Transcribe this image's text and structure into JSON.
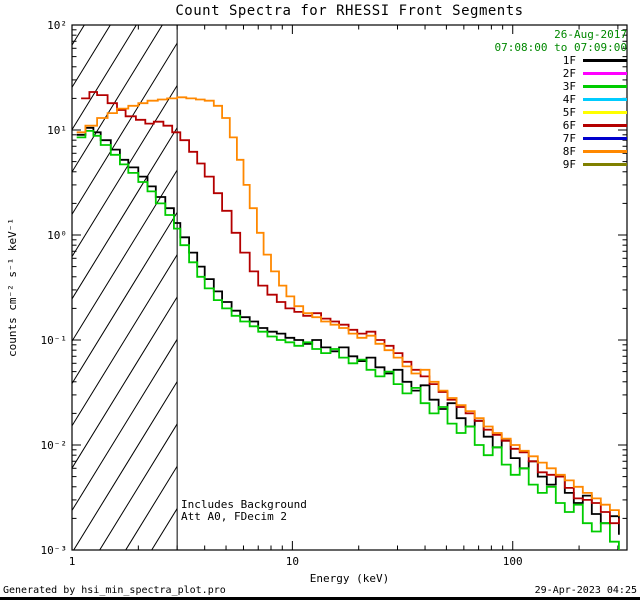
{
  "title": "Count Spectra for RHESSI Front Segments",
  "footer": {
    "left": "Generated by hsi_min_spectra_plot.pro",
    "right": "29-Apr-2023 04:25"
  },
  "annotations": {
    "background": "Includes Background",
    "attenuator": "Att A0, FDecim 2"
  },
  "legend": {
    "date": "26-Aug-2017",
    "time_range": "07:08:00 to 07:09:00",
    "date_color": "#008800",
    "entries": [
      {
        "label": "1F",
        "color": "#000000"
      },
      {
        "label": "2F",
        "color": "#ff00ff"
      },
      {
        "label": "3F",
        "color": "#00cc00"
      },
      {
        "label": "4F",
        "color": "#00ccff"
      },
      {
        "label": "5F",
        "color": "#ffff00"
      },
      {
        "label": "6F",
        "color": "#b40000"
      },
      {
        "label": "7F",
        "color": "#0000cc"
      },
      {
        "label": "8F",
        "color": "#ff8800"
      },
      {
        "label": "9F",
        "color": "#808000"
      }
    ]
  },
  "chart_data": {
    "type": "line",
    "mode": "histogram-step",
    "x_scale": "log",
    "y_scale": "log",
    "xlabel": "Energy (keV)",
    "ylabel": "counts cm⁻² s⁻¹ keV⁻¹",
    "xlim": [
      1,
      330
    ],
    "ylim": [
      0.001,
      100
    ],
    "x_ticks": [
      1,
      10,
      100
    ],
    "x_tick_labels": [
      "1",
      "10",
      "100"
    ],
    "y_ticks": [
      0.001,
      0.01,
      0.1,
      1,
      10,
      100
    ],
    "y_tick_labels": [
      "10⁻³",
      "10⁻²",
      "10⁻¹",
      "10⁰",
      "10¹",
      "10²"
    ],
    "grid": false,
    "legend_position": "top-right",
    "hatch_region": {
      "x_min": 1,
      "x_max": 3
    },
    "series": [
      {
        "name": "1F",
        "color": "#000000",
        "points": [
          [
            1.05,
            9.0
          ],
          [
            1.15,
            10.5
          ],
          [
            1.25,
            9.5
          ],
          [
            1.35,
            8.0
          ],
          [
            1.5,
            6.5
          ],
          [
            1.65,
            5.2
          ],
          [
            1.8,
            4.4
          ],
          [
            2.0,
            3.6
          ],
          [
            2.2,
            2.9
          ],
          [
            2.4,
            2.3
          ],
          [
            2.65,
            1.8
          ],
          [
            2.9,
            1.3
          ],
          [
            3.1,
            0.95
          ],
          [
            3.4,
            0.68
          ],
          [
            3.7,
            0.5
          ],
          [
            4.0,
            0.38
          ],
          [
            4.4,
            0.29
          ],
          [
            4.8,
            0.23
          ],
          [
            5.3,
            0.19
          ],
          [
            5.8,
            0.165
          ],
          [
            6.4,
            0.15
          ],
          [
            7.0,
            0.13
          ],
          [
            7.7,
            0.12
          ],
          [
            8.5,
            0.115
          ],
          [
            9.3,
            0.105
          ],
          [
            10.2,
            0.1
          ],
          [
            11.2,
            0.092
          ],
          [
            12.3,
            0.1
          ],
          [
            13.5,
            0.085
          ],
          [
            14.9,
            0.078
          ],
          [
            16.3,
            0.085
          ],
          [
            18.0,
            0.07
          ],
          [
            19.7,
            0.063
          ],
          [
            21.7,
            0.068
          ],
          [
            23.8,
            0.055
          ],
          [
            26.2,
            0.048
          ],
          [
            28.8,
            0.052
          ],
          [
            31.6,
            0.04
          ],
          [
            34.7,
            0.033
          ],
          [
            38.2,
            0.037
          ],
          [
            41.9,
            0.027
          ],
          [
            46.1,
            0.022
          ],
          [
            50.6,
            0.025
          ],
          [
            55.6,
            0.018
          ],
          [
            61.1,
            0.015
          ],
          [
            67.2,
            0.017
          ],
          [
            73.8,
            0.012
          ],
          [
            81.1,
            0.0095
          ],
          [
            89.1,
            0.011
          ],
          [
            97.9,
            0.0075
          ],
          [
            107.6,
            0.006
          ],
          [
            118.2,
            0.007
          ],
          [
            129.9,
            0.005
          ],
          [
            142.7,
            0.0042
          ],
          [
            156.8,
            0.005
          ],
          [
            172.3,
            0.0035
          ],
          [
            189.3,
            0.0028
          ],
          [
            208.0,
            0.0033
          ],
          [
            228.5,
            0.0022
          ],
          [
            251.1,
            0.0018
          ],
          [
            275.9,
            0.0021
          ],
          [
            303.1,
            0.0014
          ]
        ]
      },
      {
        "name": "3F",
        "color": "#00cc00",
        "points": [
          [
            1.05,
            8.5
          ],
          [
            1.15,
            9.8
          ],
          [
            1.25,
            8.8
          ],
          [
            1.35,
            7.2
          ],
          [
            1.5,
            5.8
          ],
          [
            1.65,
            4.7
          ],
          [
            1.8,
            3.9
          ],
          [
            2.0,
            3.2
          ],
          [
            2.2,
            2.6
          ],
          [
            2.4,
            2.0
          ],
          [
            2.65,
            1.55
          ],
          [
            2.9,
            1.15
          ],
          [
            3.1,
            0.8
          ],
          [
            3.4,
            0.55
          ],
          [
            3.7,
            0.4
          ],
          [
            4.0,
            0.31
          ],
          [
            4.4,
            0.24
          ],
          [
            4.8,
            0.2
          ],
          [
            5.3,
            0.17
          ],
          [
            5.8,
            0.15
          ],
          [
            6.4,
            0.135
          ],
          [
            7.0,
            0.12
          ],
          [
            7.7,
            0.108
          ],
          [
            8.5,
            0.1
          ],
          [
            9.3,
            0.095
          ],
          [
            10.2,
            0.088
          ],
          [
            11.2,
            0.095
          ],
          [
            12.3,
            0.082
          ],
          [
            13.5,
            0.075
          ],
          [
            14.9,
            0.082
          ],
          [
            16.3,
            0.068
          ],
          [
            18.0,
            0.06
          ],
          [
            19.7,
            0.065
          ],
          [
            21.7,
            0.052
          ],
          [
            23.8,
            0.045
          ],
          [
            26.2,
            0.05
          ],
          [
            28.8,
            0.038
          ],
          [
            31.6,
            0.031
          ],
          [
            34.7,
            0.035
          ],
          [
            38.2,
            0.025
          ],
          [
            41.9,
            0.02
          ],
          [
            46.1,
            0.023
          ],
          [
            50.6,
            0.016
          ],
          [
            55.6,
            0.013
          ],
          [
            61.1,
            0.015
          ],
          [
            67.2,
            0.01
          ],
          [
            73.8,
            0.008
          ],
          [
            81.1,
            0.0095
          ],
          [
            89.1,
            0.0065
          ],
          [
            97.9,
            0.0052
          ],
          [
            107.6,
            0.006
          ],
          [
            118.2,
            0.0042
          ],
          [
            129.9,
            0.0035
          ],
          [
            142.7,
            0.004
          ],
          [
            156.8,
            0.0028
          ],
          [
            172.3,
            0.0023
          ],
          [
            189.3,
            0.0027
          ],
          [
            208.0,
            0.0018
          ],
          [
            228.5,
            0.0015
          ],
          [
            251.1,
            0.0018
          ],
          [
            275.9,
            0.0012
          ],
          [
            303.1,
            0.001
          ]
        ]
      },
      {
        "name": "6F",
        "color": "#b40000",
        "points": [
          [
            1.1,
            20
          ],
          [
            1.2,
            23
          ],
          [
            1.3,
            21.5
          ],
          [
            1.45,
            18
          ],
          [
            1.6,
            15.5
          ],
          [
            1.75,
            13.5
          ],
          [
            1.95,
            12.5
          ],
          [
            2.15,
            11.5
          ],
          [
            2.35,
            12
          ],
          [
            2.6,
            11
          ],
          [
            2.85,
            9.5
          ],
          [
            3.1,
            8.0
          ],
          [
            3.4,
            6.2
          ],
          [
            3.7,
            4.8
          ],
          [
            4.0,
            3.6
          ],
          [
            4.4,
            2.5
          ],
          [
            4.8,
            1.7
          ],
          [
            5.3,
            1.05
          ],
          [
            5.8,
            0.68
          ],
          [
            6.4,
            0.45
          ],
          [
            7.0,
            0.33
          ],
          [
            7.7,
            0.27
          ],
          [
            8.5,
            0.23
          ],
          [
            9.3,
            0.2
          ],
          [
            10.2,
            0.185
          ],
          [
            11.2,
            0.17
          ],
          [
            12.3,
            0.18
          ],
          [
            13.5,
            0.16
          ],
          [
            14.9,
            0.15
          ],
          [
            16.3,
            0.14
          ],
          [
            18.0,
            0.125
          ],
          [
            19.7,
            0.115
          ],
          [
            21.7,
            0.12
          ],
          [
            23.8,
            0.1
          ],
          [
            26.2,
            0.088
          ],
          [
            28.8,
            0.075
          ],
          [
            31.6,
            0.062
          ],
          [
            34.7,
            0.052
          ],
          [
            38.2,
            0.045
          ],
          [
            41.9,
            0.038
          ],
          [
            46.1,
            0.032
          ],
          [
            50.6,
            0.027
          ],
          [
            55.6,
            0.023
          ],
          [
            61.1,
            0.02
          ],
          [
            67.2,
            0.017
          ],
          [
            73.8,
            0.014
          ],
          [
            81.1,
            0.0125
          ],
          [
            89.1,
            0.011
          ],
          [
            97.9,
            0.0092
          ],
          [
            107.6,
            0.0085
          ],
          [
            118.2,
            0.007
          ],
          [
            129.9,
            0.0055
          ],
          [
            142.7,
            0.0052
          ],
          [
            156.8,
            0.005
          ],
          [
            172.3,
            0.0039
          ],
          [
            189.3,
            0.0031
          ],
          [
            208.0,
            0.003
          ],
          [
            228.5,
            0.0028
          ],
          [
            251.1,
            0.0023
          ],
          [
            275.9,
            0.0018
          ],
          [
            303.1,
            0.002
          ]
        ]
      },
      {
        "name": "8F",
        "color": "#ff8800",
        "points": [
          [
            1.05,
            9.5
          ],
          [
            1.15,
            11
          ],
          [
            1.3,
            13
          ],
          [
            1.45,
            14.5
          ],
          [
            1.6,
            16
          ],
          [
            1.8,
            17
          ],
          [
            2.0,
            18
          ],
          [
            2.2,
            19
          ],
          [
            2.45,
            19.5
          ],
          [
            2.7,
            20
          ],
          [
            3.0,
            20.5
          ],
          [
            3.3,
            20
          ],
          [
            3.65,
            19.5
          ],
          [
            4.0,
            19
          ],
          [
            4.4,
            17
          ],
          [
            4.8,
            13
          ],
          [
            5.2,
            8.5
          ],
          [
            5.6,
            5.2
          ],
          [
            6.0,
            3.0
          ],
          [
            6.4,
            1.8
          ],
          [
            6.9,
            1.05
          ],
          [
            7.4,
            0.65
          ],
          [
            8.0,
            0.45
          ],
          [
            8.7,
            0.33
          ],
          [
            9.4,
            0.26
          ],
          [
            10.2,
            0.21
          ],
          [
            11.2,
            0.18
          ],
          [
            12.3,
            0.165
          ],
          [
            13.5,
            0.15
          ],
          [
            14.9,
            0.14
          ],
          [
            16.3,
            0.13
          ],
          [
            18.0,
            0.115
          ],
          [
            19.7,
            0.105
          ],
          [
            21.7,
            0.11
          ],
          [
            23.8,
            0.092
          ],
          [
            26.2,
            0.08
          ],
          [
            28.8,
            0.068
          ],
          [
            31.6,
            0.056
          ],
          [
            34.7,
            0.048
          ],
          [
            38.2,
            0.052
          ],
          [
            41.9,
            0.04
          ],
          [
            46.1,
            0.033
          ],
          [
            50.6,
            0.028
          ],
          [
            55.6,
            0.024
          ],
          [
            61.1,
            0.021
          ],
          [
            67.2,
            0.018
          ],
          [
            73.8,
            0.015
          ],
          [
            81.1,
            0.013
          ],
          [
            89.1,
            0.0115
          ],
          [
            97.9,
            0.01
          ],
          [
            107.6,
            0.0088
          ],
          [
            118.2,
            0.0078
          ],
          [
            129.9,
            0.0068
          ],
          [
            142.7,
            0.006
          ],
          [
            156.8,
            0.0052
          ],
          [
            172.3,
            0.0046
          ],
          [
            189.3,
            0.004
          ],
          [
            208.0,
            0.0035
          ],
          [
            228.5,
            0.0031
          ],
          [
            251.1,
            0.0027
          ],
          [
            275.9,
            0.0024
          ],
          [
            303.1,
            0.0021
          ]
        ]
      }
    ]
  }
}
